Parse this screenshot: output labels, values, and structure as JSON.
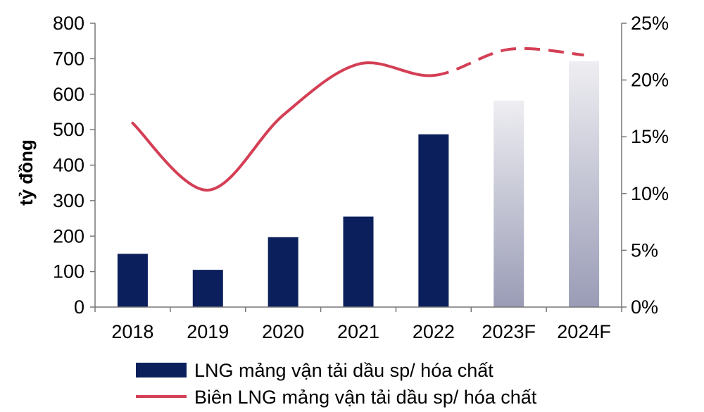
{
  "chart_data": {
    "type": "bar",
    "categories": [
      "2018",
      "2019",
      "2020",
      "2021",
      "2022",
      "2023F",
      "2024F"
    ],
    "series": [
      {
        "name": "LNG mảng vận tải dầu sp/ hóa chất",
        "type": "bar",
        "axis": "left",
        "values": [
          150,
          105,
          197,
          255,
          487,
          582,
          693
        ],
        "colors": [
          "#0b1f5c",
          "#0b1f5c",
          "#0b1f5c",
          "#0b1f5c",
          "#0b1f5c",
          "forecast-gradient",
          "forecast-gradient"
        ]
      },
      {
        "name": "Biên LNG mảng vận tải dầu sp/ hóa chất",
        "type": "line",
        "axis": "right",
        "values": [
          16.2,
          10.3,
          16.9,
          21.4,
          20.4,
          22.7,
          22.2
        ],
        "forecast_from_index": 4,
        "color": "#d43f55"
      }
    ],
    "ylabel": "tỷ đồng",
    "ylim": [
      0,
      800
    ],
    "yticks": [
      "0",
      "100",
      "200",
      "300",
      "400",
      "500",
      "600",
      "700",
      "800"
    ],
    "y2lim": [
      0,
      25
    ],
    "y2ticks": [
      "0%",
      "5%",
      "10%",
      "15%",
      "20%",
      "25%"
    ],
    "legend": "bottom",
    "grid": false,
    "colors": {
      "bar": "#0b1f5c",
      "forecast_top": "#eeeef2",
      "forecast_bottom": "#9a9cb6",
      "line": "#d43f55"
    }
  }
}
